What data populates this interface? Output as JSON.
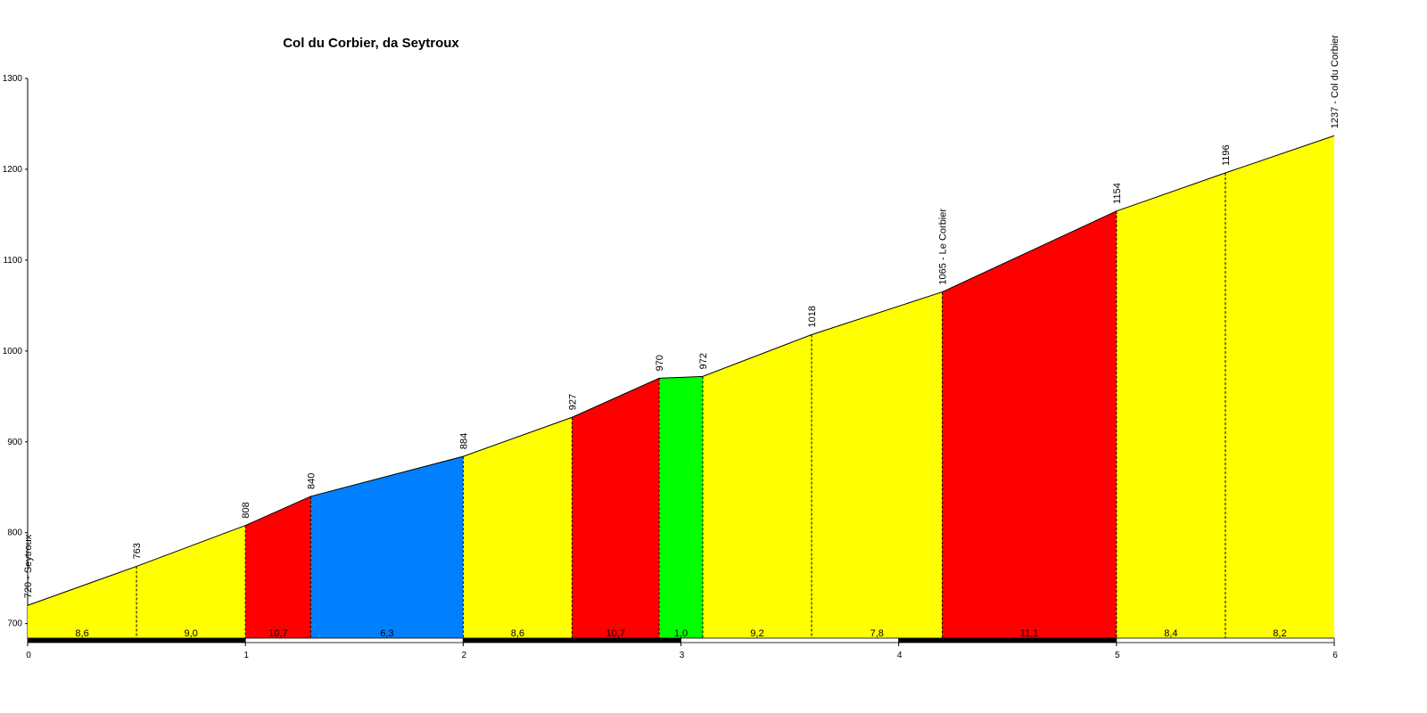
{
  "chart_data": {
    "type": "profile",
    "title": "Col du Corbier, da Seytroux",
    "x": [
      0,
      0.5,
      1,
      1.3,
      2,
      2.5,
      2.9,
      3.1,
      3.6,
      4.2,
      5,
      5.5,
      6
    ],
    "values": [
      720,
      763,
      808,
      840,
      884,
      927,
      970,
      972,
      1018,
      1065,
      1154,
      1196,
      1237
    ],
    "value_labels": [
      "720 - Seytroux",
      "763",
      "808",
      "840",
      "884",
      "927",
      "970",
      "972",
      "1018",
      "1065 - Le Corbier",
      "1154",
      "1196",
      "1237 - Col du Corbier"
    ],
    "segments": {
      "values": [
        8.6,
        9.0,
        10.7,
        6.3,
        8.6,
        10.7,
        1.0,
        9.2,
        7.8,
        11.1,
        8.4,
        8.2
      ],
      "value_labels": [
        "8,6",
        "9,0",
        "10,7",
        "6,3",
        "8,6",
        "10,7",
        "1,0",
        "9,2",
        "7,8",
        "11,1",
        "8,4",
        "8,2"
      ],
      "colors": [
        "#ffff00",
        "#ffff00",
        "#ff0000",
        "#0080ff",
        "#ffff00",
        "#ff0000",
        "#00ff00",
        "#ffff00",
        "#ffff00",
        "#ff0000",
        "#ffff00",
        "#ffff00"
      ]
    },
    "xlim": [
      0,
      6
    ],
    "xticks": [
      0,
      1,
      2,
      3,
      4,
      5,
      6
    ],
    "ylim": [
      683,
      1300
    ],
    "yticks": [
      700,
      800,
      900,
      1000,
      1100,
      1200,
      1300
    ]
  }
}
